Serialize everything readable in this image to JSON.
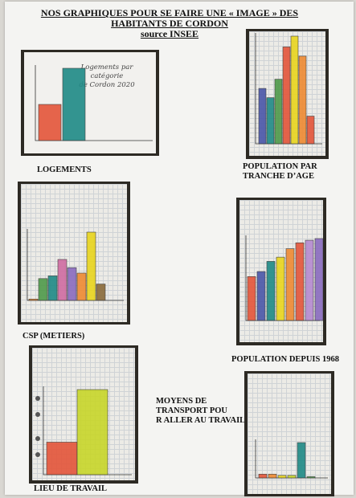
{
  "header": {
    "title_line1": "NOS GRAPHIQUES POUR SE FAIRE UNE « IMAGE » DES",
    "title_line2": "HABITANTS DE CORDON",
    "title_line3": "source INSEE"
  },
  "labels": {
    "logements": "LOGEMENTS",
    "population_age_1": "POPULATION PAR",
    "population_age_2": "TRANCHE D’AGE",
    "csp": "CSP (METIERS)",
    "population_1968": "POPULATION DEPUIS 1968",
    "lieu_travail": "LIEU DE TRAVAIL",
    "transport_1": "MOYENS DE",
    "transport_2": "TRANSPORT POU",
    "transport_3": "R ALLER AU TRAVAIL"
  },
  "handwritten": {
    "logements_title_1": "Logements par catégorie",
    "logements_title_2": "de Cordon 2020"
  },
  "colors": {
    "red": "#e4553a",
    "teal": "#1f8a86",
    "blue": "#4a56a8",
    "green": "#4f9a4a",
    "yellow": "#e9d51e",
    "orange": "#ef8a32",
    "pink": "#d06ca2",
    "purple": "#8a6bbf",
    "violet": "#b68ad0",
    "brown": "#8a6a3a",
    "lime": "#c8d62a"
  },
  "chart_data": [
    {
      "type": "bar",
      "name_ref": "logements",
      "values": [
        2,
        4
      ],
      "colors": [
        "red",
        "teal"
      ]
    },
    {
      "type": "bar",
      "name_ref": "population_age",
      "values": [
        36,
        30,
        42,
        63,
        70,
        57,
        18
      ],
      "colors": [
        "blue",
        "teal",
        "green",
        "red",
        "yellow",
        "orange",
        "red"
      ]
    },
    {
      "type": "bar",
      "name_ref": "csp",
      "values": [
        0.5,
        8,
        9,
        15,
        12,
        10,
        25,
        6
      ],
      "colors": [
        "orange",
        "green",
        "teal",
        "pink",
        "purple",
        "orange",
        "yellow",
        "brown"
      ]
    },
    {
      "type": "bar",
      "name_ref": "population_1968",
      "values": [
        52,
        58,
        70,
        75,
        85,
        92,
        95,
        97
      ],
      "colors": [
        "red",
        "blue",
        "teal",
        "yellow",
        "orange",
        "red",
        "violet",
        "purple"
      ]
    },
    {
      "type": "bar",
      "name_ref": "lieu_travail",
      "values": [
        26,
        68
      ],
      "colors": [
        "red",
        "lime"
      ]
    },
    {
      "type": "bar",
      "name_ref": "transport",
      "values": [
        3,
        3,
        2,
        2,
        28,
        1
      ],
      "colors": [
        "red",
        "orange",
        "yellow",
        "lime",
        "teal",
        "green"
      ]
    }
  ]
}
